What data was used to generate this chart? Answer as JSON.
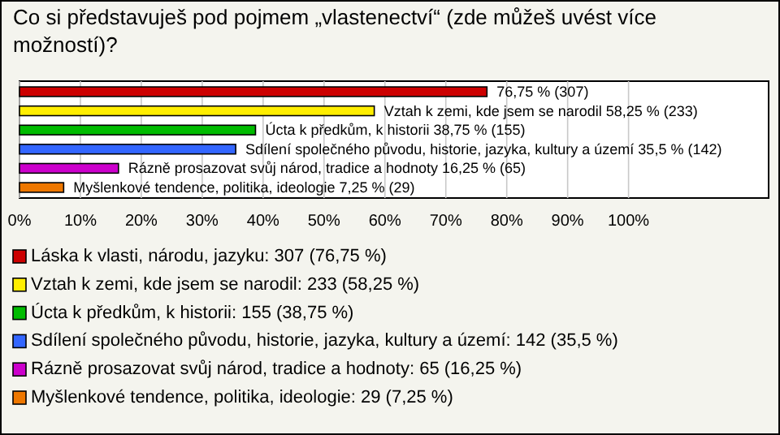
{
  "chart_data": {
    "type": "bar",
    "orientation": "horizontal",
    "title": "Co si představuješ pod pojmem „vlastenectví“ (zde můžeš uvést více možností)?",
    "categories": [
      null,
      null,
      null,
      null,
      null,
      null
    ],
    "series": [
      {
        "name": "Láska k vlasti, národu, jazyku: 307 (76,75 %)",
        "color": "#cc0000",
        "values": [
          76.75,
          null,
          null,
          null,
          null,
          null
        ],
        "value_labels": [
          "76,75 % (307)",
          null,
          null,
          null,
          null,
          null
        ]
      },
      {
        "name": "Vztah k zemi, kde jsem se narodil: 233 (58,25 %)",
        "color": "#ffee00",
        "values": [
          null,
          58.25,
          null,
          null,
          null,
          null
        ],
        "value_labels": [
          null,
          "Vztah k zemi, kde jsem se narodil 58,25 % (233)",
          null,
          null,
          null,
          null
        ]
      },
      {
        "name": "Úcta k předkům, k historii: 155 (38,75 %)",
        "color": "#00bb00",
        "values": [
          null,
          null,
          38.75,
          null,
          null,
          null
        ],
        "value_labels": [
          null,
          null,
          "Úcta k předkům, k historii 38,75 % (155)",
          null,
          null,
          null
        ]
      },
      {
        "name": "Sdílení společného původu, historie, jazyka, kultury a území: 142 (35,5 %)",
        "color": "#3366ff",
        "values": [
          null,
          null,
          null,
          35.5,
          null,
          null
        ],
        "value_labels": [
          null,
          null,
          null,
          "Sdílení společného původu, historie, jazyka, kultury a území 35,5 % (142)",
          null,
          null
        ]
      },
      {
        "name": "Rázně prosazovat svůj národ, tradice a hodnoty: 65 (16,25 %)",
        "color": "#cc00cc",
        "values": [
          null,
          null,
          null,
          null,
          16.25,
          null
        ],
        "value_labels": [
          null,
          null,
          null,
          null,
          "Rázně prosazovat svůj národ, tradice a hodnoty 16,25 % (65)",
          null
        ]
      },
      {
        "name": "Myšlenkové tendence, politika, ideologie: 29 (7,25 %)",
        "color": "#ee7700",
        "values": [
          null,
          null,
          null,
          null,
          null,
          7.25
        ],
        "value_labels": [
          null,
          null,
          null,
          null,
          null,
          "Myšlenkové tendence, politika, ideologie 7,25 % (29)"
        ]
      }
    ],
    "xlim": [
      0,
      123
    ],
    "xticks": [
      {
        "value": 0,
        "label": "0%"
      },
      {
        "value": 10,
        "label": "10%"
      },
      {
        "value": 20,
        "label": "20%"
      },
      {
        "value": 30,
        "label": "30%"
      },
      {
        "value": 40,
        "label": "40%"
      },
      {
        "value": 50,
        "label": "50%"
      },
      {
        "value": 60,
        "label": "60%"
      },
      {
        "value": 70,
        "label": "70%"
      },
      {
        "value": 80,
        "label": "80%"
      },
      {
        "value": 90,
        "label": "90%"
      },
      {
        "value": 100,
        "label": "100%"
      }
    ],
    "grid": "x",
    "legend": "bottom"
  }
}
